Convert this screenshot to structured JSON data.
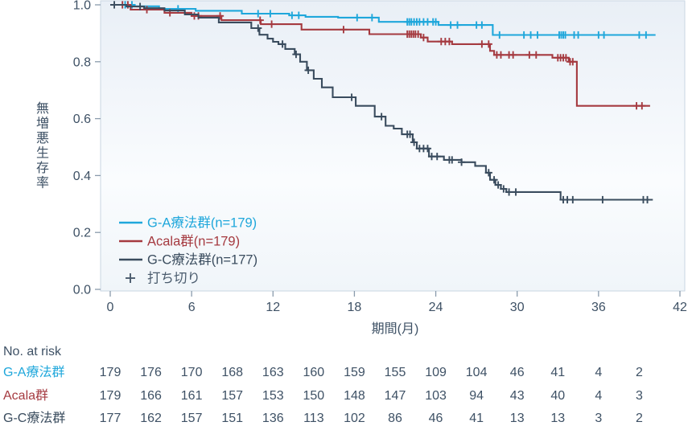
{
  "colors": {
    "text": "#3E5165",
    "tick": "#8A9BAC",
    "plot_border": "#C9D6E2",
    "plot_bg_top": "#E9EFF6",
    "plot_bg_bottom": "#FAFCFE",
    "censor_legend": "#4A5B6D",
    "ga": "#1FA7DB",
    "acala": "#A53A40",
    "gc": "#3A4C5E"
  },
  "chart_data": {
    "type": "line",
    "subtype": "kaplan-meier-step",
    "title": "",
    "xlabel": "期間(月)",
    "ylabel": "無増悪生存率",
    "xlim": [
      0,
      42
    ],
    "xticks": [
      0,
      6,
      12,
      18,
      24,
      30,
      36,
      42
    ],
    "ylim": [
      0.0,
      1.0
    ],
    "ytick_labels": [
      "0.0",
      "0.2",
      "0.4",
      "0.6",
      "0.8",
      "1.0"
    ],
    "grid": false,
    "legend_position": "inside-lower-left",
    "censor_marker": "+",
    "censor_legend_label": "打ち切り",
    "series": [
      {
        "id": "ga",
        "name": "G-A療法群(n=179)",
        "color": "#1FA7DB",
        "steps": [
          [
            0,
            1.0
          ],
          [
            1.8,
            0.995
          ],
          [
            3.6,
            0.986
          ],
          [
            6.3,
            0.979
          ],
          [
            9.7,
            0.969
          ],
          [
            13.2,
            0.963
          ],
          [
            14.4,
            0.958
          ],
          [
            16.8,
            0.955
          ],
          [
            19.8,
            0.94
          ],
          [
            24.2,
            0.929
          ],
          [
            28.2,
            0.894
          ],
          [
            40.2,
            0.894
          ]
        ],
        "censor_months": [
          1.1,
          1.6,
          5.0,
          10.9,
          11.8,
          13.4,
          13.9,
          18.2,
          19.3,
          21.9,
          22.05,
          22.2,
          22.4,
          22.6,
          22.8,
          23.1,
          23.4,
          23.8,
          24.0,
          25.1,
          25.6,
          27.0,
          27.4,
          28.7,
          30.5,
          31.0,
          31.5,
          33.1,
          33.25,
          33.4,
          33.55,
          34.2,
          34.5,
          36.0,
          36.4,
          39.0,
          39.5
        ]
      },
      {
        "id": "acala",
        "name": "Acala群(n=179)",
        "color": "#A53A40",
        "steps": [
          [
            0,
            1.0
          ],
          [
            1.5,
            0.983
          ],
          [
            4,
            0.972
          ],
          [
            6,
            0.961
          ],
          [
            8.2,
            0.946
          ],
          [
            11.1,
            0.932
          ],
          [
            14.1,
            0.913
          ],
          [
            19.1,
            0.897
          ],
          [
            22.9,
            0.885
          ],
          [
            23.4,
            0.871
          ],
          [
            25.2,
            0.862
          ],
          [
            28.0,
            0.838
          ],
          [
            28.3,
            0.824
          ],
          [
            32.6,
            0.814
          ],
          [
            33.8,
            0.8
          ],
          [
            34.4,
            0.645
          ],
          [
            39.8,
            0.645
          ]
        ],
        "censor_months": [
          0.9,
          1.3,
          2.7,
          4.4,
          6.2,
          6.5,
          8.1,
          11.05,
          11.9,
          17.2,
          21.9,
          22.05,
          22.2,
          22.35,
          22.5,
          22.7,
          23.1,
          24.4,
          24.7,
          25.0,
          27.4,
          27.9,
          28.5,
          28.8,
          29.4,
          29.7,
          30.9,
          31.4,
          33.0,
          33.2,
          33.4,
          33.6,
          33.9,
          34.1,
          38.8,
          39.2
        ]
      },
      {
        "id": "gc",
        "name": "G-C療法群(n=177)",
        "color": "#3A4C5E",
        "steps": [
          [
            0,
            1.0
          ],
          [
            1.2,
            0.994
          ],
          [
            2.5,
            0.988
          ],
          [
            4,
            0.98
          ],
          [
            5.5,
            0.966
          ],
          [
            6.5,
            0.955
          ],
          [
            8,
            0.938
          ],
          [
            10.4,
            0.918
          ],
          [
            11,
            0.895
          ],
          [
            11.6,
            0.881
          ],
          [
            12,
            0.87
          ],
          [
            12.4,
            0.862
          ],
          [
            12.9,
            0.845
          ],
          [
            13.6,
            0.826
          ],
          [
            14,
            0.8
          ],
          [
            14.5,
            0.77
          ],
          [
            15,
            0.74
          ],
          [
            15.6,
            0.71
          ],
          [
            16.4,
            0.675
          ],
          [
            18.1,
            0.645
          ],
          [
            19.5,
            0.607
          ],
          [
            20.3,
            0.575
          ],
          [
            20.9,
            0.565
          ],
          [
            21.5,
            0.545
          ],
          [
            22.3,
            0.517
          ],
          [
            22.6,
            0.495
          ],
          [
            23.5,
            0.467
          ],
          [
            24.6,
            0.455
          ],
          [
            25.9,
            0.447
          ],
          [
            26.9,
            0.434
          ],
          [
            27.7,
            0.41
          ],
          [
            28.0,
            0.385
          ],
          [
            28.4,
            0.367
          ],
          [
            28.8,
            0.353
          ],
          [
            29.2,
            0.342
          ],
          [
            33.2,
            0.315
          ],
          [
            40.0,
            0.315
          ]
        ],
        "censor_months": [
          0.3,
          2.2,
          10.9,
          12.7,
          13.7,
          14.6,
          17.8,
          20.0,
          21.9,
          22.1,
          22.4,
          22.8,
          23.1,
          23.4,
          23.7,
          24.1,
          25.0,
          25.2,
          25.9,
          27.9,
          28.3,
          28.6,
          29.0,
          29.4,
          29.9,
          33.4,
          33.7,
          34.1,
          36.3,
          39.3,
          39.6
        ]
      }
    ]
  },
  "at_risk": {
    "title": "No. at risk",
    "timepoints": [
      0,
      3,
      6,
      9,
      12,
      15,
      18,
      21,
      24,
      27,
      30,
      33,
      36,
      39
    ],
    "rows": [
      {
        "id": "ga",
        "label": "G-A療法群",
        "color": "#1FA7DB",
        "values": [
          179,
          176,
          170,
          168,
          163,
          160,
          159,
          155,
          109,
          104,
          46,
          41,
          4,
          2
        ]
      },
      {
        "id": "acala",
        "label": "Acala群",
        "color": "#A53A40",
        "values": [
          179,
          166,
          161,
          157,
          153,
          150,
          148,
          147,
          103,
          94,
          43,
          40,
          4,
          3
        ]
      },
      {
        "id": "gc",
        "label": "G-C療法群",
        "color": "#3A4C5E",
        "values": [
          177,
          162,
          157,
          151,
          136,
          113,
          102,
          86,
          46,
          41,
          13,
          13,
          3,
          2
        ]
      }
    ]
  }
}
